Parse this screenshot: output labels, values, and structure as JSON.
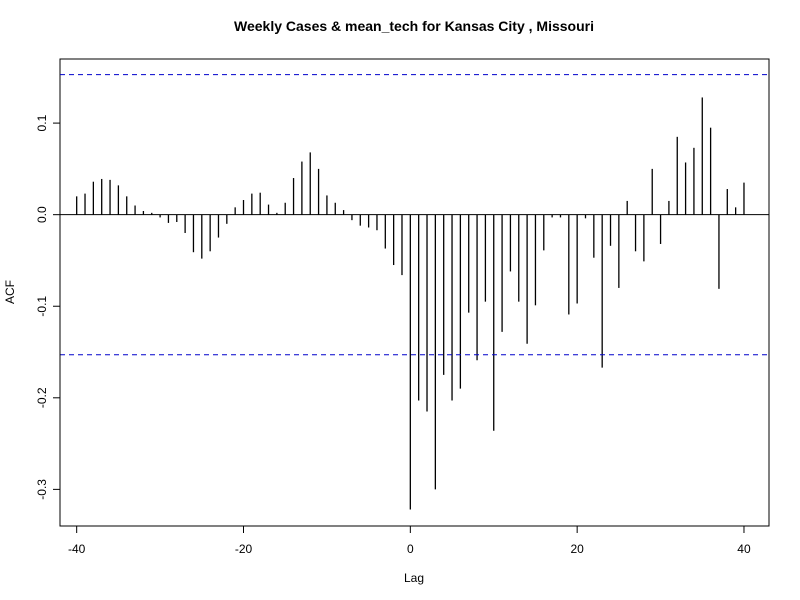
{
  "chart_data": {
    "type": "bar",
    "title": "Weekly Cases & mean_tech for Kansas City , Missouri",
    "xlabel": "Lag",
    "ylabel": "ACF",
    "xlim": [
      -42,
      43
    ],
    "ylim": [
      -0.34,
      0.17
    ],
    "x_ticks": [
      -40,
      -20,
      0,
      20,
      40
    ],
    "y_ticks": [
      -0.3,
      -0.2,
      -0.1,
      0.0,
      0.1
    ],
    "x_tick_labels": [
      "-40",
      "-20",
      "0",
      "20",
      "40"
    ],
    "y_tick_labels": [
      "-0.3",
      "-0.2",
      "-0.1",
      "0.0",
      "0.1"
    ],
    "confidence_bound": 0.153,
    "colors": {
      "bars": "#000000",
      "confidence": "#0000cc",
      "axes": "#000000"
    },
    "lags": [
      -40,
      -39,
      -38,
      -37,
      -36,
      -35,
      -34,
      -33,
      -32,
      -31,
      -30,
      -29,
      -28,
      -27,
      -26,
      -25,
      -24,
      -23,
      -22,
      -21,
      -20,
      -19,
      -18,
      -17,
      -16,
      -15,
      -14,
      -13,
      -12,
      -11,
      -10,
      -9,
      -8,
      -7,
      -6,
      -5,
      -4,
      -3,
      -2,
      -1,
      0,
      1,
      2,
      3,
      4,
      5,
      6,
      7,
      8,
      9,
      10,
      11,
      12,
      13,
      14,
      15,
      16,
      17,
      18,
      19,
      20,
      21,
      22,
      23,
      24,
      25,
      26,
      27,
      28,
      29,
      30,
      31,
      32,
      33,
      34,
      35,
      36,
      37,
      38,
      39,
      40
    ],
    "values": [
      0.02,
      0.023,
      0.036,
      0.039,
      0.038,
      0.032,
      0.02,
      0.01,
      0.004,
      0.002,
      -0.003,
      -0.009,
      -0.008,
      -0.02,
      -0.041,
      -0.048,
      -0.04,
      -0.025,
      -0.01,
      0.008,
      0.016,
      0.023,
      0.024,
      0.011,
      0.002,
      0.013,
      0.04,
      0.058,
      0.068,
      0.05,
      0.021,
      0.013,
      0.005,
      -0.006,
      -0.012,
      -0.014,
      -0.017,
      -0.037,
      -0.055,
      -0.066,
      -0.322,
      -0.203,
      -0.215,
      -0.3,
      -0.175,
      -0.203,
      -0.19,
      -0.107,
      -0.159,
      -0.095,
      -0.236,
      -0.128,
      -0.062,
      -0.095,
      -0.141,
      -0.099,
      -0.039,
      -0.003,
      -0.003,
      -0.109,
      -0.097,
      -0.004,
      -0.047,
      -0.167,
      -0.034,
      -0.08,
      0.015,
      -0.04,
      -0.051,
      0.05,
      -0.032,
      0.015,
      0.085,
      0.057,
      0.073,
      0.128,
      0.095,
      -0.081,
      0.028,
      0.008,
      0.035
    ]
  }
}
